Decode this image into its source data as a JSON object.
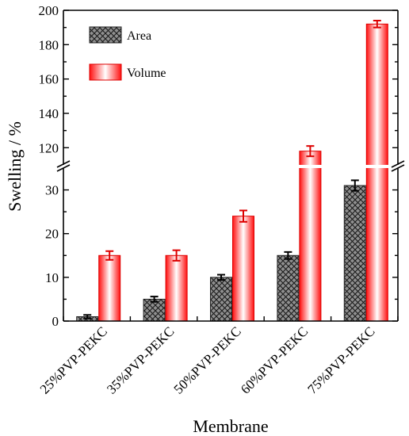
{
  "chart_data": {
    "type": "bar",
    "xlabel": "Membrane",
    "ylabel": "Swelling / %",
    "categories": [
      "25%PVP-PEKC",
      "35%PVP-PEKC",
      "50%PVP-PEKC",
      "60%PVP-PEKC",
      "75%PVP-PEKC"
    ],
    "series": [
      {
        "name": "Area",
        "values": [
          1,
          5,
          10,
          15,
          31
        ],
        "errors": [
          0.4,
          0.6,
          0.6,
          0.8,
          1.2
        ],
        "color": "#9a9a9a",
        "pattern": "crosshatch"
      },
      {
        "name": "Volume",
        "values": [
          15,
          15,
          24,
          118,
          192
        ],
        "errors": [
          1,
          1.2,
          1.3,
          3,
          2
        ],
        "color": "#ff1a1a",
        "pattern": "gradient"
      }
    ],
    "axis_break": {
      "lower_range": [
        0,
        35
      ],
      "upper_range": [
        110,
        200
      ]
    },
    "yticks_lower": [
      0,
      10,
      20,
      30
    ],
    "yticks_upper": [
      120,
      140,
      160,
      180,
      200
    ],
    "legend_position": "top-left",
    "grid": false
  }
}
